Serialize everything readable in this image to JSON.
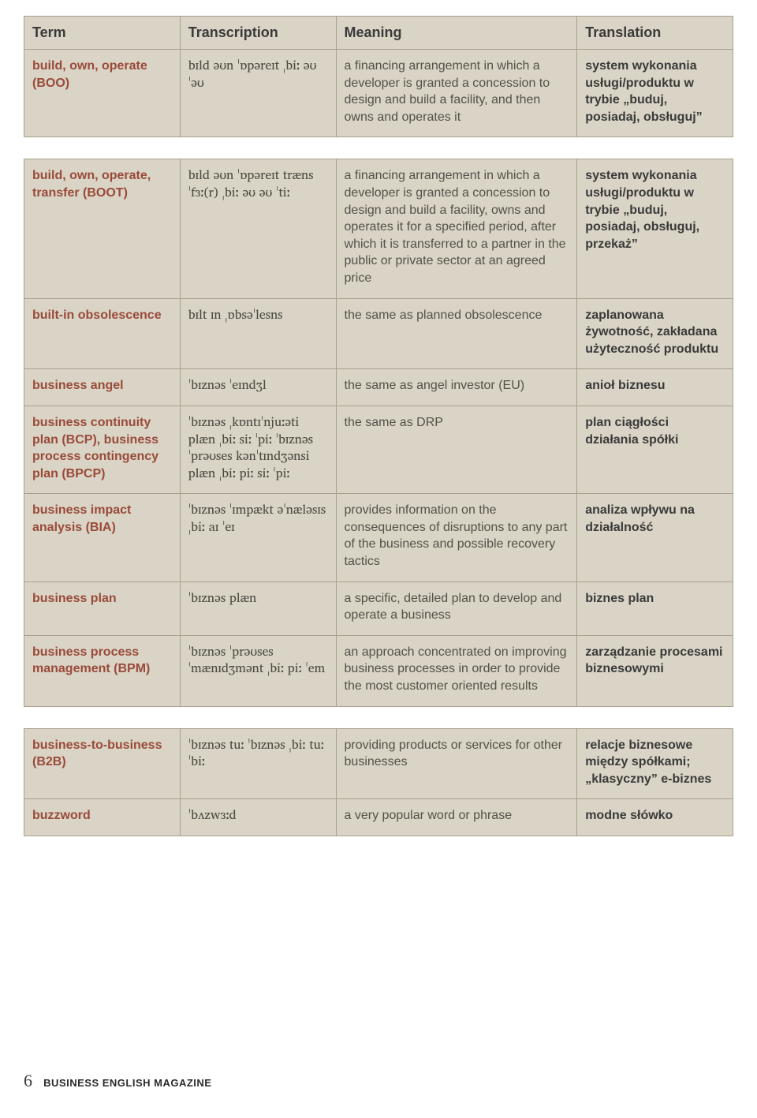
{
  "columns": [
    "Term",
    "Transcription",
    "Meaning",
    "Translation"
  ],
  "footer": {
    "page_num": "6",
    "magazine": "BUSINESS ENGLISH MAGAZINE"
  },
  "groups": [
    [
      {
        "term": "build, own, operate (BOO)",
        "ipa": "bɪld əʊn ˈɒpəreɪt ˌbiː əʊ ˈəʊ",
        "meaning": "a financing arrangement in which a developer is granted a concession to design and build a facility, and then owns and operates it",
        "translation": "system wykonania usługi/produktu w trybie „buduj, posiadaj, obsługuj”"
      }
    ],
    [
      {
        "term": "build, own, operate, transfer (BOOT)",
        "ipa": "bɪld əʊn ˈɒpəreɪt trænsˈfɜː(r) ˌbiː əʊ əʊ ˈtiː",
        "meaning": "a financing arrangement in which a developer is granted a concession to design and build a facility, owns and operates it for a specified period, after which it is transferred to a partner in the public or private sector at an agreed price",
        "translation": "system wykonania usługi/produktu w trybie „buduj, posiadaj, obsługuj, przekaż”"
      },
      {
        "term": "built-in obsolescence",
        "ipa": "bɪlt ɪn ˌɒbsəˈlesns",
        "meaning": "the same as planned obsolescence",
        "translation": "zaplanowana żywotność, zakładana użyteczność produktu"
      },
      {
        "term": "business angel",
        "ipa": "ˈbɪznəs ˈeɪndʒl",
        "meaning": "the same as angel investor (EU)",
        "translation": "anioł biznesu"
      },
      {
        "term": "business continuity plan (BCP), business process contingency plan (BPCP)",
        "ipa": "ˈbɪznəs ˌkɒntɪˈnjuːəti plæn ˌbiː siː ˈpiː ˈbɪznəs ˈprəʊses kənˈtɪndʒənsi plæn ˌbiː piː siː ˈpiː",
        "meaning": "the same as DRP",
        "translation": "plan ciągłości działania spółki"
      },
      {
        "term": "business impact analysis (BIA)",
        "ipa": "ˈbɪznəs ˈɪmpækt əˈnæləsɪs ˌbiː aɪ ˈeɪ",
        "meaning": "provides information on the consequences of disruptions to any part of the business and possible recovery tactics",
        "translation": "analiza wpływu na działalność"
      },
      {
        "term": "business plan",
        "ipa": "ˈbɪznəs plæn",
        "meaning": "a specific, detailed plan to develop and operate a business",
        "translation": "biznes plan"
      },
      {
        "term": "business process management (BPM)",
        "ipa": "ˈbɪznəs ˈprəʊses ˈmænɪdʒmənt ˌbiː piː ˈem",
        "meaning": "an approach concentrated on improving business processes in order to provide the most customer oriented results",
        "translation": "zarządzanie procesami biznesowymi"
      }
    ],
    [
      {
        "term": "business-to-business (B2B)",
        "ipa": "ˈbɪznəs tuː ˈbɪznəs ˌbiː tuː ˈbiː",
        "meaning": "providing products or services for other businesses",
        "translation": "relacje biznesowe między spółkami; „klasyczny” e-biznes"
      },
      {
        "term": "buzzword",
        "ipa": "ˈbʌzwɜːd",
        "meaning": "a very popular word or phrase",
        "translation": "modne słówko"
      }
    ]
  ]
}
